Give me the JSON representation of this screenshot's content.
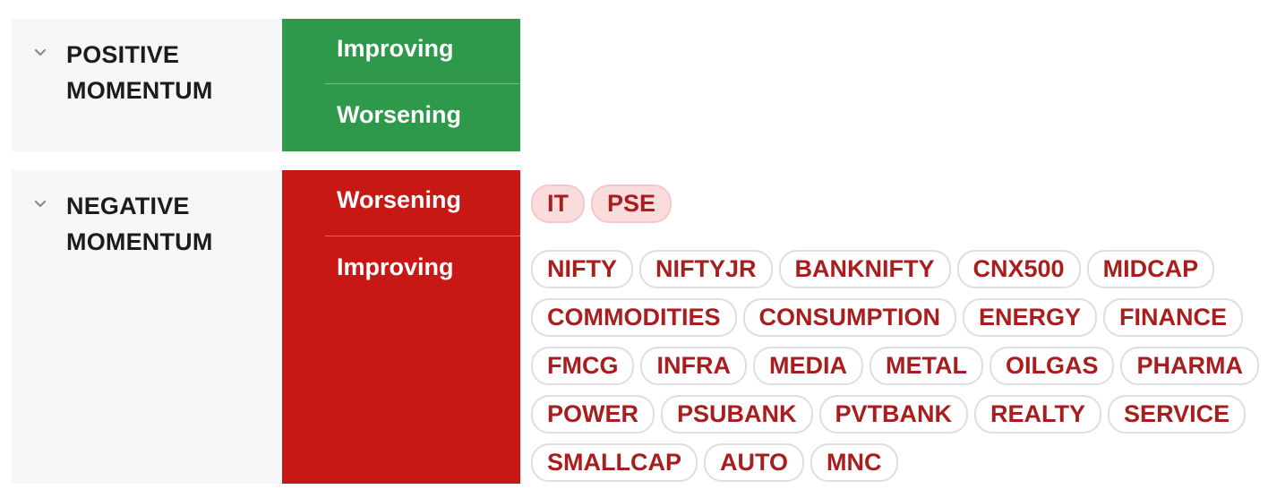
{
  "groups": [
    {
      "title_line1": "POSITIVE",
      "title_line2": "MOMENTUM",
      "statuses": [
        "Improving",
        "Worsening"
      ],
      "tags": {
        "improving": [],
        "worsening": []
      }
    },
    {
      "title_line1": "NEGATIVE",
      "title_line2": "MOMENTUM",
      "statuses": [
        "Worsening",
        "Improving"
      ],
      "tags": {
        "worsening": [
          "IT",
          "PSE"
        ],
        "improving": [
          "NIFTY",
          "NIFTYJR",
          "BANKNIFTY",
          "CNX500",
          "MIDCAP",
          "COMMODITIES",
          "CONSUMPTION",
          "ENERGY",
          "FINANCE",
          "FMCG",
          "INFRA",
          "MEDIA",
          "METAL",
          "OILGAS",
          "PHARMA",
          "POWER",
          "PSUBANK",
          "PVTBANK",
          "REALTY",
          "SERVICE",
          "SMALLCAP",
          "AUTO",
          "MNC"
        ]
      }
    }
  ],
  "colors": {
    "positive": "#2e994a",
    "negative": "#c81815",
    "tag_text": "#a81d1d",
    "tag_highlight_bg": "#fbdcdc"
  },
  "icons": {
    "collapse": "chevron-down-icon"
  }
}
